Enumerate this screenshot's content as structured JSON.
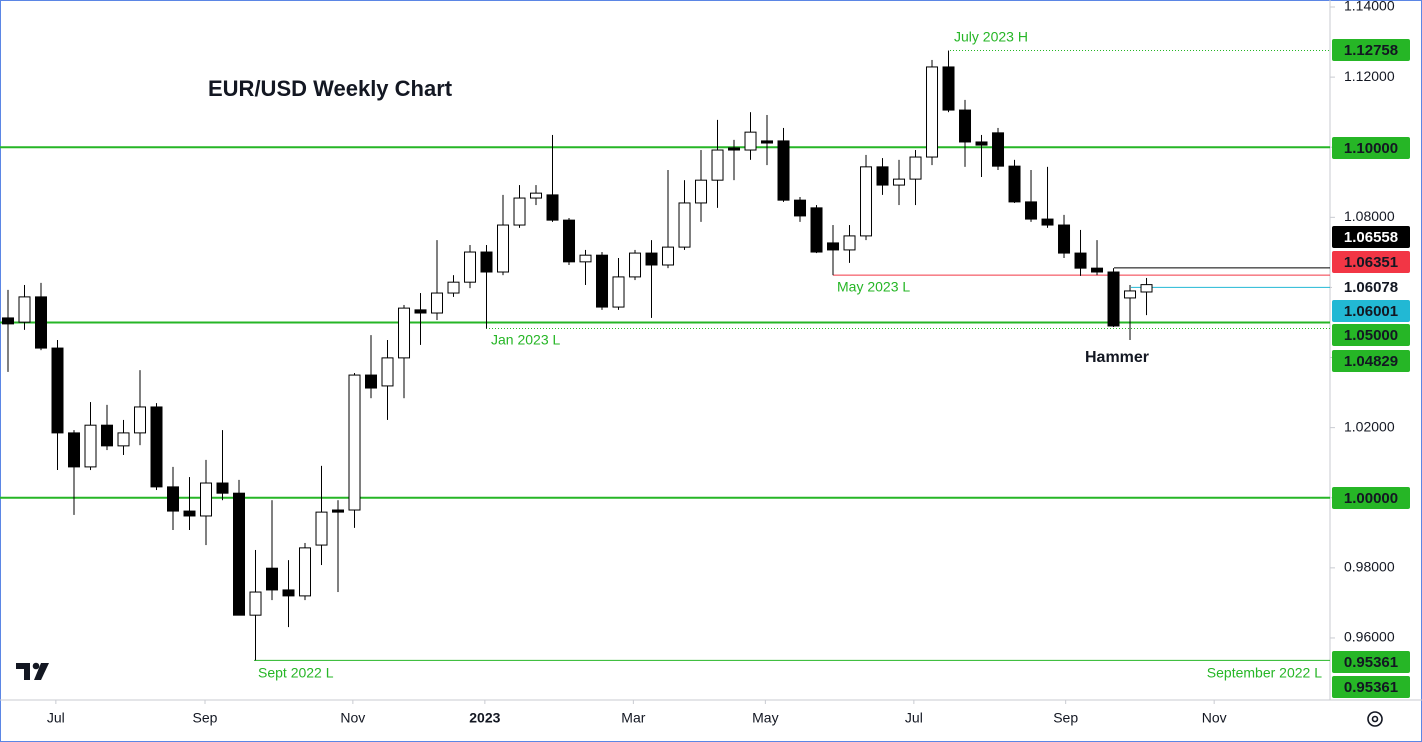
{
  "chart_data": {
    "type": "candlestick",
    "title": "EUR/USD Weekly Chart",
    "categories": [
      null,
      null,
      null,
      null,
      null,
      null,
      null,
      null,
      null,
      null,
      null,
      null,
      null,
      null,
      null,
      null,
      null,
      null,
      null,
      null,
      null,
      null,
      null,
      null,
      null,
      null,
      null,
      null,
      null,
      null,
      null,
      null,
      null,
      null,
      null,
      null,
      null,
      null,
      null,
      null,
      null,
      null,
      null,
      null,
      null,
      null,
      null,
      null,
      null,
      null,
      null,
      null,
      null,
      null,
      null,
      null,
      null,
      null,
      null,
      null,
      null,
      null,
      null,
      null,
      null,
      null,
      null,
      null,
      null,
      null
    ],
    "open": [
      1.0513,
      1.0501,
      1.0573,
      1.0427,
      1.0185,
      1.0088,
      1.0207,
      1.0148,
      1.0185,
      1.0259,
      1.0031,
      0.9962,
      0.9948,
      1.0042,
      1.0013,
      0.9665,
      0.9799,
      0.9737,
      0.972,
      0.9865,
      0.9965,
      0.9965,
      1.035,
      1.0319,
      1.0399,
      1.0536,
      1.0527,
      1.0584,
      1.0615,
      1.0701,
      1.0644,
      1.0778,
      1.0855,
      1.0864,
      1.0792,
      1.0673,
      1.0692,
      1.0544,
      1.063,
      1.0698,
      1.0664,
      1.0715,
      1.0841,
      1.0906,
      1.0998,
      1.0992,
      1.1018,
      1.1018,
      1.0849,
      1.0827,
      1.0727,
      1.0707,
      1.0747,
      1.0944,
      1.0892,
      1.0909,
      1.0972,
      1.1229,
      1.1106,
      1.1015,
      1.1041,
      1.0946,
      1.0844,
      1.0795,
      1.0778,
      1.0698,
      1.0655,
      1.0644,
      1.057,
      1.0587
    ],
    "high": [
      1.0593,
      1.0607,
      1.0613,
      1.045,
      1.0193,
      1.0273,
      1.0265,
      1.0222,
      1.0364,
      1.027,
      1.0088,
      1.0059,
      1.0108,
      1.0193,
      1.0051,
      0.9851,
      0.9993,
      0.9822,
      0.9871,
      1.0091,
      0.9993,
      1.0356,
      1.0464,
      1.045,
      1.055,
      1.0584,
      1.0735,
      1.0635,
      1.0721,
      1.0721,
      1.0864,
      1.0892,
      1.0892,
      1.1035,
      1.0798,
      1.0707,
      1.0701,
      1.0684,
      1.0707,
      1.0735,
      1.0935,
      1.0906,
      1.0992,
      1.1078,
      1.1021,
      1.11,
      1.1092,
      1.1055,
      1.0858,
      1.0835,
      1.0778,
      1.0778,
      1.0978,
      1.0969,
      1.0964,
      1.0992,
      1.1249,
      1.12758,
      1.1135,
      1.1035,
      1.1055,
      1.0964,
      1.0935,
      1.0944,
      1.0807,
      1.0764,
      1.0735,
      1.0655,
      1.0607,
      1.0627
    ],
    "low": [
      1.0359,
      1.0479,
      1.0421,
      1.0079,
      0.9951,
      1.0079,
      1.0136,
      1.0122,
      1.015,
      1.0022,
      0.9908,
      0.9908,
      0.9865,
      0.9993,
      0.9665,
      0.95361,
      0.9708,
      0.9631,
      0.9708,
      0.9808,
      0.9731,
      0.9914,
      1.0284,
      1.0222,
      1.0284,
      1.0436,
      1.0507,
      1.0573,
      1.0598,
      1.04829,
      1.0635,
      1.077,
      1.0835,
      1.0787,
      1.0664,
      1.0607,
      1.0536,
      1.0536,
      1.0621,
      1.0513,
      1.0655,
      1.0707,
      1.0787,
      1.0827,
      1.0906,
      1.0964,
      1.0949,
      1.0844,
      1.0787,
      1.0698,
      1.0635,
      1.067,
      1.0735,
      1.0864,
      1.0835,
      1.0835,
      1.0949,
      1.11,
      1.0944,
      1.0915,
      1.0935,
      1.0841,
      1.0787,
      1.077,
      1.0684,
      1.0633,
      1.0635,
      1.0487,
      1.045,
      1.0521
    ],
    "close": [
      1.0496,
      1.0573,
      1.0427,
      1.0185,
      1.0088,
      1.0207,
      1.0148,
      1.0185,
      1.0259,
      1.0031,
      0.9962,
      0.9948,
      1.0042,
      1.0013,
      0.9665,
      0.9731,
      0.9737,
      0.972,
      0.9857,
      0.9959,
      0.9959,
      1.035,
      1.0313,
      1.0399,
      1.0541,
      1.0527,
      1.0584,
      1.0615,
      1.0701,
      1.0644,
      1.0778,
      1.0855,
      1.0869,
      1.0792,
      1.0673,
      1.0692,
      1.0544,
      1.063,
      1.0698,
      1.0664,
      1.0715,
      1.0841,
      1.0906,
      1.0992,
      1.0992,
      1.1043,
      1.1012,
      1.0849,
      1.0804,
      1.0701,
      1.0707,
      1.0747,
      1.0944,
      1.0892,
      1.0909,
      1.0972,
      1.1229,
      1.1106,
      1.1015,
      1.1006,
      1.0946,
      1.0844,
      1.0795,
      1.0778,
      1.0698,
      1.0655,
      1.0644,
      1.049,
      1.059,
      1.0608
    ],
    "up_color": "#ffffff",
    "down_color": "#000000",
    "xlim": [
      -0.485,
      80.12
    ],
    "xticks": [
      {
        "value": 2.9,
        "label": "Jul"
      },
      {
        "value": 11.94,
        "label": "Sep"
      },
      {
        "value": 20.9,
        "label": "Nov"
      },
      {
        "value": 28.9,
        "label": "2023"
      },
      {
        "value": 37.9,
        "label": "Mar"
      },
      {
        "value": 45.9,
        "label": "May"
      },
      {
        "value": 54.9,
        "label": "Jul"
      },
      {
        "value": 64.1,
        "label": "Sep"
      },
      {
        "value": 73.1,
        "label": "Nov"
      }
    ],
    "ylim": [
      0.9423,
      1.142
    ],
    "yticks": [
      {
        "value": 1.14,
        "label": "1.14000"
      },
      {
        "value": 1.12,
        "label": "1.12000"
      },
      {
        "value": 1.1,
        "label": "1.10000"
      },
      {
        "value": 1.08,
        "label": "1.08000"
      },
      {
        "value": 1.06,
        "label": "1.06000"
      },
      {
        "value": 1.04,
        "label": "1.04000"
      },
      {
        "value": 1.02,
        "label": "1.02000"
      },
      {
        "value": 1.0,
        "label": "1.00000"
      },
      {
        "value": 0.98,
        "label": "0.98000"
      },
      {
        "value": 0.96,
        "label": "0.96000"
      }
    ],
    "grid": false,
    "levels": [
      {
        "value": 1.12758,
        "color": "#26b626",
        "style": "dotted"
      },
      {
        "value": 1.1,
        "label": "1.10000",
        "color": "#26b626",
        "style": "solid"
      },
      {
        "value": 1.06558,
        "color": "#000000",
        "style": "solid"
      },
      {
        "value": 1.06351,
        "color": "#f23645",
        "style": "solid"
      },
      {
        "value": 1.06078,
        "color": "#ffffff",
        "style": "none"
      },
      {
        "value": 1.06001,
        "color": "#22b8d4",
        "style": "solid"
      },
      {
        "value": 1.05,
        "label": "1.05000",
        "color": "#26b626",
        "style": "solid"
      },
      {
        "value": 1.04829,
        "color": "#26b626",
        "style": "dotted"
      },
      {
        "value": 1.0,
        "label": "1.00000",
        "color": "#26b626",
        "style": "solid"
      },
      {
        "value": 0.95361,
        "color": "#26b626",
        "style": "solid"
      },
      {
        "value": 0.95361,
        "color": "#26b626",
        "style": "none"
      }
    ],
    "annotations": [
      "July 2023 H",
      "Jan 2023 L",
      "May 2023 L",
      "Sept 2022 L",
      "September 2022 L",
      "Hammer"
    ]
  }
}
